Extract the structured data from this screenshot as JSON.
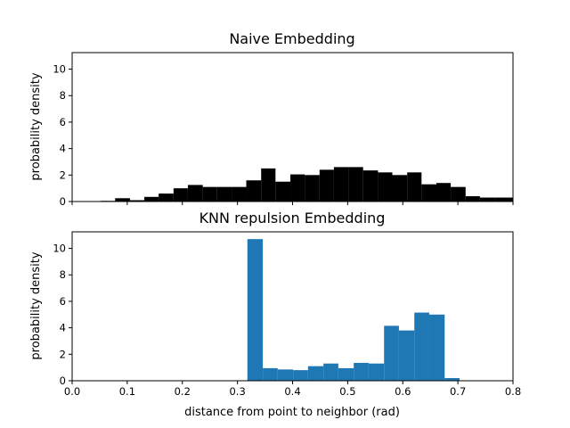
{
  "figure": {
    "xlabel": "distance from point to neighbor (rad)",
    "sharex": true,
    "xlim": [
      0.0,
      0.8
    ],
    "xticks": [
      "0.0",
      "0.1",
      "0.2",
      "0.3",
      "0.4",
      "0.5",
      "0.6",
      "0.7",
      "0.8"
    ],
    "xtick_values": [
      0.0,
      0.1,
      0.2,
      0.3,
      0.4,
      0.5,
      0.6,
      0.7,
      0.8
    ]
  },
  "chart_data": [
    {
      "type": "bar",
      "title": "Naive Embedding",
      "xlabel": "",
      "ylabel": "probability density",
      "ylim": [
        0,
        11.25
      ],
      "yticks": [
        "0",
        "2",
        "4",
        "6",
        "8",
        "10"
      ],
      "ytick_values": [
        0,
        2,
        4,
        6,
        8,
        10
      ],
      "color": "#000000",
      "grid": false,
      "bins": [
        {
          "x0": 0.052,
          "x1": 0.078,
          "value": 0.05
        },
        {
          "x0": 0.078,
          "x1": 0.105,
          "value": 0.25
        },
        {
          "x0": 0.105,
          "x1": 0.131,
          "value": 0.1
        },
        {
          "x0": 0.131,
          "x1": 0.157,
          "value": 0.35
        },
        {
          "x0": 0.157,
          "x1": 0.184,
          "value": 0.6
        },
        {
          "x0": 0.184,
          "x1": 0.21,
          "value": 1.0
        },
        {
          "x0": 0.21,
          "x1": 0.237,
          "value": 1.25
        },
        {
          "x0": 0.237,
          "x1": 0.263,
          "value": 1.1
        },
        {
          "x0": 0.263,
          "x1": 0.29,
          "value": 1.1
        },
        {
          "x0": 0.29,
          "x1": 0.316,
          "value": 1.1
        },
        {
          "x0": 0.316,
          "x1": 0.343,
          "value": 1.6
        },
        {
          "x0": 0.343,
          "x1": 0.369,
          "value": 2.5
        },
        {
          "x0": 0.369,
          "x1": 0.396,
          "value": 1.5
        },
        {
          "x0": 0.396,
          "x1": 0.422,
          "value": 2.05
        },
        {
          "x0": 0.422,
          "x1": 0.449,
          "value": 2.0
        },
        {
          "x0": 0.449,
          "x1": 0.475,
          "value": 2.4
        },
        {
          "x0": 0.475,
          "x1": 0.502,
          "value": 2.6
        },
        {
          "x0": 0.502,
          "x1": 0.528,
          "value": 2.6
        },
        {
          "x0": 0.528,
          "x1": 0.555,
          "value": 2.35
        },
        {
          "x0": 0.555,
          "x1": 0.581,
          "value": 2.2
        },
        {
          "x0": 0.581,
          "x1": 0.608,
          "value": 2.0
        },
        {
          "x0": 0.608,
          "x1": 0.634,
          "value": 2.2
        },
        {
          "x0": 0.634,
          "x1": 0.661,
          "value": 1.3
        },
        {
          "x0": 0.661,
          "x1": 0.687,
          "value": 1.4
        },
        {
          "x0": 0.687,
          "x1": 0.714,
          "value": 1.1
        },
        {
          "x0": 0.714,
          "x1": 0.74,
          "value": 0.4
        },
        {
          "x0": 0.74,
          "x1": 0.767,
          "value": 0.3
        },
        {
          "x0": 0.767,
          "x1": 0.8,
          "value": 0.3
        }
      ]
    },
    {
      "type": "bar",
      "title": "KNN repulsion Embedding",
      "xlabel": "distance from point to neighbor (rad)",
      "ylabel": "probability density",
      "ylim": [
        0,
        11.25
      ],
      "yticks": [
        "0",
        "2",
        "4",
        "6",
        "8",
        "10"
      ],
      "ytick_values": [
        0,
        2,
        4,
        6,
        8,
        10
      ],
      "color": "#1f77b4",
      "grid": false,
      "bins": [
        {
          "x0": 0.318,
          "x1": 0.346,
          "value": 10.7
        },
        {
          "x0": 0.346,
          "x1": 0.373,
          "value": 0.95
        },
        {
          "x0": 0.373,
          "x1": 0.401,
          "value": 0.85
        },
        {
          "x0": 0.401,
          "x1": 0.428,
          "value": 0.8
        },
        {
          "x0": 0.428,
          "x1": 0.456,
          "value": 1.1
        },
        {
          "x0": 0.456,
          "x1": 0.483,
          "value": 1.3
        },
        {
          "x0": 0.483,
          "x1": 0.511,
          "value": 0.95
        },
        {
          "x0": 0.511,
          "x1": 0.538,
          "value": 1.35
        },
        {
          "x0": 0.538,
          "x1": 0.566,
          "value": 1.3
        },
        {
          "x0": 0.566,
          "x1": 0.593,
          "value": 4.15
        },
        {
          "x0": 0.593,
          "x1": 0.621,
          "value": 3.8
        },
        {
          "x0": 0.621,
          "x1": 0.648,
          "value": 5.15
        },
        {
          "x0": 0.648,
          "x1": 0.676,
          "value": 5.0
        },
        {
          "x0": 0.676,
          "x1": 0.703,
          "value": 0.2
        }
      ]
    }
  ]
}
